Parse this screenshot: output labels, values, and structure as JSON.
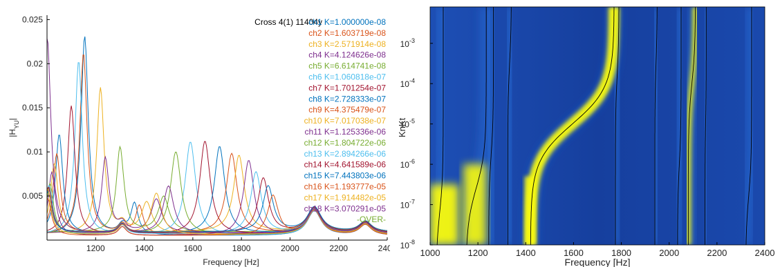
{
  "chart_data": [
    {
      "type": "line",
      "title": "Cross 4(1) 11404y",
      "xlabel": "Frequency [Hz]",
      "ylabel": "|H",
      "ylabel_sub": "YU",
      "ylabel_close": "|",
      "xlim": [
        1000,
        2400
      ],
      "ylim": [
        0,
        0.0255
      ],
      "xticks": [
        1200,
        1400,
        1600,
        1800,
        2000,
        2200,
        2400
      ],
      "xtick_labels": [
        "1200",
        "1400",
        "1600",
        "1800",
        "2000",
        "2200",
        "2400"
      ],
      "yticks": [
        0.005,
        0.01,
        0.015,
        0.02,
        0.025
      ],
      "ytick_labels": [
        "0.005",
        "0.01",
        "0.015",
        "0.02",
        "0.025"
      ],
      "legend_location": "top-right",
      "legend_extra": "-OVER-",
      "legend_extra_color": "#77AC30",
      "series": [
        {
          "name": "ch1 K=1.000000e-08",
          "color": "#0072BD",
          "peaks": [
            [
              1155,
              0.0226
            ],
            [
              1360,
              0.0035
            ]
          ]
        },
        {
          "name": "ch2 K=1.603719e-08",
          "color": "#D95319",
          "peaks": [
            [
              1150,
              0.0206
            ],
            [
              1380,
              0.0032
            ]
          ]
        },
        {
          "name": "ch3 K=2.571914e-08",
          "color": "#EDB120",
          "peaks": [
            [
              1220,
              0.0165
            ],
            [
              1410,
              0.0035
            ]
          ]
        },
        {
          "name": "ch4 K=4.124626e-08",
          "color": "#7E2F8E",
          "peaks": [
            [
              1240,
              0.0085
            ],
            [
              1450,
              0.0038
            ]
          ]
        },
        {
          "name": "ch5 K=6.614741e-08",
          "color": "#77AC30",
          "peaks": [
            [
              1300,
              0.0088
            ],
            [
              1480,
              0.004
            ]
          ]
        },
        {
          "name": "ch6 K=1.060818e-07",
          "color": "#4DBEEE",
          "peaks": [
            [
              1130,
              0.0198
            ],
            [
              1590,
              0.0106
            ]
          ]
        },
        {
          "name": "ch7 K=1.701254e-07",
          "color": "#A2142F",
          "peaks": [
            [
              1100,
              0.0146
            ],
            [
              1650,
              0.0106
            ]
          ]
        },
        {
          "name": "ch8 K=2.728333e-07",
          "color": "#0072BD",
          "peaks": [
            [
              1050,
              0.0113
            ],
            [
              1710,
              0.0099
            ]
          ]
        },
        {
          "name": "ch9 K=4.375479e-07",
          "color": "#D95319",
          "peaks": [
            [
              1040,
              0.009
            ],
            [
              1760,
              0.009
            ]
          ]
        },
        {
          "name": "ch10 K=7.017038e-07",
          "color": "#EDB120",
          "peaks": [
            [
              1030,
              0.0078
            ],
            [
              1790,
              0.0087
            ]
          ]
        },
        {
          "name": "ch11 K=1.125336e-06",
          "color": "#7E2F8E",
          "peaks": [
            [
              1020,
              0.0072
            ],
            [
              1830,
              0.0085
            ]
          ]
        },
        {
          "name": "ch12 K=1.804722e-06",
          "color": "#77AC30",
          "peaks": [
            [
              1012,
              0.0058
            ],
            [
              1530,
              0.0094
            ]
          ]
        },
        {
          "name": "ch13 K=2.894266e-06",
          "color": "#4DBEEE",
          "peaks": [
            [
              1008,
              0.0055
            ],
            [
              1860,
              0.007
            ]
          ]
        },
        {
          "name": "ch14 K=4.641589e-06",
          "color": "#A2142F",
          "peaks": [
            [
              1006,
              0.0052
            ],
            [
              1890,
              0.0062
            ]
          ]
        },
        {
          "name": "ch15 K=7.443803e-06",
          "color": "#0072BD",
          "peaks": [
            [
              1004,
              0.0046
            ],
            [
              1910,
              0.0052
            ]
          ]
        },
        {
          "name": "ch16 K=1.193777e-05",
          "color": "#D95319",
          "peaks": [
            [
              1003,
              0.0042
            ],
            [
              1930,
              0.0045
            ]
          ]
        },
        {
          "name": "ch17 K=1.914482e-05",
          "color": "#EDB120",
          "peaks": [
            [
              1002,
              0.0052
            ],
            [
              1450,
              0.0047
            ]
          ]
        },
        {
          "name": "ch18 K=3.070291e-05",
          "color": "#7E2F8E",
          "peaks": [
            [
              1001,
              0.0222
            ],
            [
              1500,
              0.0054
            ]
          ]
        }
      ]
    },
    {
      "type": "heatmap",
      "xlabel": "Frequency [Hz]",
      "ylabel": "KnKt",
      "xlim": [
        1000,
        2400
      ],
      "ylim": [
        1e-08,
        0.008
      ],
      "yscale": "log",
      "xticks": [
        1000,
        1200,
        1400,
        1600,
        1800,
        2000,
        2200,
        2400
      ],
      "xtick_labels": [
        "1000",
        "1200",
        "1400",
        "1600",
        "1800",
        "2000",
        "2200",
        "2400"
      ],
      "ytick_base": "10",
      "yticks": [
        -8,
        -7,
        -6,
        -5,
        -4,
        -3
      ],
      "ytick_exponents": [
        "-8",
        "-7",
        "-6",
        "-5",
        "-4",
        "-3"
      ],
      "colormap": [
        "#0c2a8a",
        "#2a6bd6",
        "#f9fb0e"
      ],
      "branch_lines_color": "#000000",
      "branches": [
        {
          "f_low": 1025,
          "f_high": 1055,
          "k_mid_exp": -7.2
        },
        {
          "f_low": 1150,
          "f_high": 1235,
          "k_mid_exp": -6.6
        },
        {
          "f_low": 1245,
          "f_high": 1265,
          "k_mid_exp": -5.8
        },
        {
          "f_low": 1325,
          "f_high": 1340,
          "k_mid_exp": -3.5
        },
        {
          "f_low": 1420,
          "f_high": 1770,
          "k_mid_exp": -5.0
        },
        {
          "f_low": 1775,
          "f_high": 1790,
          "k_mid_exp": -3.8
        },
        {
          "f_low": 1940,
          "f_high": 1950,
          "k_mid_exp": -3.5
        },
        {
          "f_low": 2035,
          "f_high": 2050,
          "k_mid_exp": -6.0
        },
        {
          "f_low": 2080,
          "f_high": 2110,
          "k_mid_exp": -4.0
        },
        {
          "f_low": 2150,
          "f_high": 2155,
          "k_mid_exp": -5.0
        },
        {
          "f_low": 2320,
          "f_high": 2345,
          "k_mid_exp": -6.8
        }
      ]
    }
  ]
}
